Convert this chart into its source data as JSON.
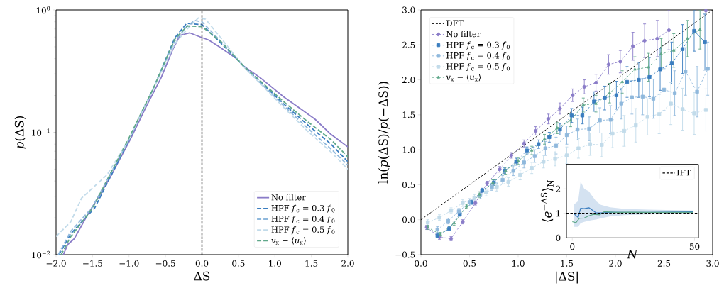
{
  "chart_data": [
    {
      "type": "line",
      "xlabel": "ΔS",
      "ylabel": "*p*(ΔS)",
      "log": "y",
      "legend": "bottom right",
      "xlim": [
        -2,
        2
      ],
      "ylim": [
        0.01,
        1
      ],
      "xticks": [
        {
          "value": -2,
          "label": "−2.0"
        },
        {
          "value": -1.5,
          "label": "−1.5"
        },
        {
          "value": -1,
          "label": "−1.0"
        },
        {
          "value": -0.5,
          "label": "−0.5"
        },
        {
          "value": 0,
          "label": "0.0"
        },
        {
          "value": 0.5,
          "label": "0.5"
        },
        {
          "value": 1,
          "label": "1.0"
        },
        {
          "value": 1.5,
          "label": "1.5"
        },
        {
          "value": 2,
          "label": "2.0"
        }
      ],
      "yticks": [
        {
          "value": 0.01,
          "label": "10$^{−2}$"
        },
        {
          "value": 0.1,
          "label": "10$^{−1}$"
        },
        {
          "value": 1,
          "label": "10$^{0}$"
        }
      ],
      "ref_lines": [
        {
          "axis": "x",
          "value": 0,
          "color": "#000000",
          "line_style": "dashed"
        }
      ],
      "series": [
        {
          "name": "No filter",
          "color": "#8a7cc8",
          "line_style": "solid",
          "x": [
            -1.9,
            -1.84,
            -1.75,
            -1.57,
            -1.37,
            -1.24,
            -0.98,
            -0.76,
            -0.56,
            -0.4,
            -0.3,
            -0.17,
            0.0,
            0.09,
            0.22,
            0.48,
            0.57,
            0.8,
            1.12,
            1.35,
            1.55,
            1.77,
            2.0
          ],
          "values": [
            0.01,
            0.0121,
            0.0135,
            0.0211,
            0.033,
            0.045,
            0.088,
            0.164,
            0.279,
            0.475,
            0.621,
            0.65,
            0.594,
            0.569,
            0.508,
            0.398,
            0.348,
            0.279,
            0.195,
            0.156,
            0.128,
            0.096,
            0.076
          ]
        },
        {
          "name": "HPF *f*$_{c}$ = 0.3 *f*$_{0}$",
          "color": "#3a7dbf",
          "line_style": "dashed",
          "x": [
            -1.96,
            -1.8,
            -1.47,
            -0.98,
            -0.66,
            -0.37,
            -0.21,
            0.0,
            0.25,
            0.57,
            1.12,
            1.45,
            1.77,
            2.0
          ],
          "values": [
            0.01,
            0.0148,
            0.0241,
            0.0917,
            0.233,
            0.594,
            0.776,
            0.759,
            0.543,
            0.348,
            0.171,
            0.115,
            0.08,
            0.0575
          ]
        },
        {
          "name": "HPF *f*$_{c}$ = 0.4 *f*$_{0}$",
          "color": "#8fb8dc",
          "line_style": "dashed",
          "x": [
            -1.97,
            -1.8,
            -1.5,
            -1.0,
            -0.66,
            -0.37,
            -0.2,
            -0.1,
            0.0,
            0.25,
            0.57,
            1.12,
            1.45,
            1.77,
            2.0
          ],
          "values": [
            0.01,
            0.0155,
            0.0245,
            0.088,
            0.233,
            0.56,
            0.74,
            0.82,
            0.8,
            0.56,
            0.345,
            0.165,
            0.108,
            0.073,
            0.054
          ]
        },
        {
          "name": "HPF *f*$_{c}$ = 0.5 *f*$_{0}$",
          "color": "#c2dbea",
          "line_style": "dashed",
          "x": [
            -2.0,
            -1.8,
            -1.65,
            -1.3,
            -1.0,
            -0.66,
            -0.37,
            -0.2,
            -0.05,
            0.05,
            0.25,
            0.57,
            1.12,
            1.45,
            1.77,
            2.0
          ],
          "values": [
            0.0141,
            0.0185,
            0.029,
            0.045,
            0.088,
            0.23,
            0.53,
            0.7,
            0.86,
            0.84,
            0.6,
            0.345,
            0.16,
            0.102,
            0.069,
            0.05
          ]
        },
        {
          "name": "*v*$_{x}$ − ⟨*u*$_{x}$⟩",
          "color": "#5fa88a",
          "line_style": "dashed",
          "x": [
            -1.93,
            -1.8,
            -1.5,
            -1.0,
            -0.66,
            -0.37,
            -0.2,
            0.0,
            0.25,
            0.57,
            1.12,
            1.45,
            1.77,
            2.0
          ],
          "values": [
            0.01,
            0.014,
            0.024,
            0.09,
            0.233,
            0.58,
            0.74,
            0.73,
            0.56,
            0.348,
            0.178,
            0.122,
            0.087,
            0.063
          ]
        }
      ]
    },
    {
      "type": "line",
      "xlabel": "|ΔS|",
      "ylabel": "ln(*p*(ΔS)/*p*(−ΔS))",
      "legend": "top left",
      "line_style": "dashed",
      "xlim": [
        0,
        3
      ],
      "ylim": [
        -0.5,
        3
      ],
      "xticks": [
        {
          "value": 0,
          "label": "0.0"
        },
        {
          "value": 0.5,
          "label": "0.5"
        },
        {
          "value": 1,
          "label": "1.0"
        },
        {
          "value": 1.5,
          "label": "1.5"
        },
        {
          "value": 2,
          "label": "2.0"
        },
        {
          "value": 2.5,
          "label": "2.5"
        },
        {
          "value": 3,
          "label": "3.0"
        }
      ],
      "yticks": [
        {
          "value": -0.5,
          "label": "−0.5"
        },
        {
          "value": 0,
          "label": "0.0"
        },
        {
          "value": 0.5,
          "label": "0.5"
        },
        {
          "value": 1,
          "label": "1.0"
        },
        {
          "value": 1.5,
          "label": "1.5"
        },
        {
          "value": 2,
          "label": "2.0"
        },
        {
          "value": 2.5,
          "label": "2.5"
        },
        {
          "value": 3,
          "label": "3.0"
        }
      ],
      "series": [
        {
          "name": "DFT",
          "color": "#000000",
          "marker": "none",
          "x": [
            0,
            3
          ],
          "values": [
            0,
            3
          ]
        },
        {
          "name": "No filter",
          "color": "#8a7cc8",
          "marker": "circle",
          "x": [
            0.06,
            0.19,
            0.31,
            0.43,
            0.56,
            0.68,
            0.81,
            0.93,
            1.06,
            1.18,
            1.31,
            1.43,
            1.56,
            1.68,
            1.8,
            1.93,
            2.05,
            2.18,
            2.3,
            2.43,
            2.55,
            2.68,
            2.8,
            2.93
          ],
          "values": [
            -0.11,
            -0.25,
            -0.27,
            -0.03,
            0.24,
            0.52,
            0.72,
            0.92,
            1.09,
            1.27,
            1.44,
            1.59,
            1.78,
            1.9,
            1.96,
            2.22,
            2.26,
            2.48,
            2.56,
            2.59,
            2.71,
            null,
            null,
            2.99
          ],
          "errors": [
            0.03,
            0.03,
            0.03,
            0.03,
            0.03,
            0.03,
            0.04,
            0.04,
            0.05,
            0.06,
            0.07,
            0.08,
            0.09,
            0.1,
            0.12,
            0.14,
            0.16,
            0.2,
            0.24,
            0.26,
            0.28,
            null,
            null,
            null
          ]
        },
        {
          "name": "HPF *f*$_{c}$ = 0.3 *f*$_{0}$",
          "color": "#3a7dbf",
          "marker": "square",
          "x": [
            0.17,
            0.29,
            0.4,
            0.52,
            0.63,
            0.75,
            0.86,
            0.98,
            1.09,
            1.21,
            1.32,
            1.43,
            1.55,
            1.66,
            1.78,
            1.89,
            2.01,
            2.12,
            2.24,
            2.35,
            2.46,
            2.58,
            2.69,
            2.81,
            2.92
          ],
          "values": [
            -0.23,
            -0.13,
            0.08,
            0.25,
            0.42,
            0.53,
            0.7,
            0.83,
            0.99,
            1.08,
            1.18,
            1.29,
            1.49,
            1.49,
            1.69,
            1.74,
            1.78,
            1.97,
            2.0,
            2.04,
            2.15,
            2.24,
            2.44,
            2.7,
            2.54
          ],
          "errors": [
            0.03,
            0.03,
            0.03,
            0.03,
            0.03,
            0.04,
            0.04,
            0.05,
            0.05,
            0.06,
            0.07,
            0.08,
            0.1,
            0.12,
            0.14,
            0.17,
            0.2,
            0.22,
            0.25,
            0.28,
            0.3,
            0.3,
            0.35,
            0.29,
            0.4
          ]
        },
        {
          "name": "HPF *f*$_{c}$ = 0.4 *f*$_{0}$",
          "color": "#8fb8dc",
          "marker": "square",
          "x": [
            0.17,
            0.28,
            0.39,
            0.5,
            0.61,
            0.73,
            0.84,
            0.95,
            1.06,
            1.17,
            1.28,
            1.39,
            1.5,
            1.61,
            1.73,
            1.84,
            1.95,
            2.06,
            2.17,
            2.28,
            2.39,
            2.5,
            2.61,
            2.72,
            2.84,
            2.95
          ],
          "values": [
            -0.14,
            -0.02,
            0.12,
            0.25,
            0.35,
            0.47,
            0.57,
            0.7,
            0.82,
            0.91,
            1.02,
            1.06,
            1.21,
            1.29,
            1.3,
            1.42,
            1.43,
            1.66,
            1.75,
            1.76,
            1.73,
            1.86,
            1.81,
            2.12,
            1.83,
            2.16
          ],
          "errors": [
            0.04,
            0.04,
            0.04,
            0.05,
            0.05,
            0.05,
            0.06,
            0.07,
            0.08,
            0.09,
            0.1,
            0.12,
            0.13,
            0.15,
            0.17,
            0.18,
            0.2,
            0.22,
            0.24,
            0.26,
            0.28,
            0.3,
            0.32,
            0.34,
            0.36,
            0.38
          ]
        },
        {
          "name": "HPF *f*$_{c}$ = 0.5 *f*$_{0}$",
          "color": "#c2dbea",
          "marker": "square",
          "x": [
            0.07,
            0.19,
            0.31,
            0.43,
            0.55,
            0.67,
            0.78,
            0.9,
            1.02,
            1.14,
            1.26,
            1.38,
            1.5,
            1.62,
            1.74,
            1.86,
            1.97,
            2.09,
            2.21,
            2.33,
            2.45,
            2.57,
            2.69,
            2.81,
            2.93
          ],
          "values": [
            -0.04,
            0.03,
            0.13,
            0.24,
            0.31,
            0.39,
            0.47,
            0.54,
            0.64,
            0.74,
            0.83,
            0.87,
            0.92,
            1.02,
            1.08,
            1.07,
            1.23,
            1.27,
            1.35,
            1.47,
            1.51,
            1.66,
            1.58,
            1.52,
            1.57
          ],
          "errors": [
            0.04,
            0.04,
            0.04,
            0.05,
            0.05,
            0.05,
            0.06,
            0.06,
            0.07,
            0.08,
            0.09,
            0.1,
            0.12,
            0.14,
            0.16,
            0.17,
            0.2,
            0.22,
            0.24,
            0.26,
            0.28,
            0.3,
            0.3,
            0.3,
            0.3
          ]
        },
        {
          "name": "*v*$_{x}$ − ⟨*u*$_{x}$⟩",
          "color": "#5fa88a",
          "marker": "triangle",
          "x": [
            0.07,
            0.2,
            0.34,
            0.47,
            0.6,
            0.74,
            0.87,
            1.0,
            1.14,
            1.27,
            1.4,
            1.54,
            1.67,
            1.8,
            1.94,
            2.07,
            2.2,
            2.34,
            2.47,
            2.6,
            2.74,
            2.87
          ],
          "values": [
            -0.11,
            -0.21,
            -0.05,
            0.19,
            0.36,
            0.53,
            0.7,
            0.84,
            0.99,
            1.15,
            1.31,
            1.42,
            1.64,
            1.66,
            1.81,
            1.97,
            2.15,
            2.18,
            2.37,
            2.42,
            2.59,
            2.72
          ],
          "errors": [
            0.03,
            0.03,
            0.03,
            0.03,
            0.04,
            0.04,
            0.05,
            0.05,
            0.06,
            0.07,
            0.08,
            0.09,
            0.1,
            0.12,
            0.14,
            0.16,
            0.18,
            0.2,
            0.22,
            0.24,
            0.26,
            0.28
          ]
        }
      ]
    },
    {
      "type": "line",
      "xlabel": "*N*",
      "ylabel": "⟨*e*$^{−ΔS}$⟩$_{N}$",
      "legend": "top right",
      "line_style": "solid",
      "xlim": [
        -2.4,
        51.6
      ],
      "ylim": [
        0,
        3
      ],
      "xticks": [
        0,
        50
      ],
      "yticks": [
        0,
        1,
        2
      ],
      "ref_lines": [
        {
          "axis": "y",
          "value": 1,
          "label": "IFT",
          "color": "#000000",
          "line_style": "dashed"
        }
      ],
      "series": [
        {
          "color": "#3a7dbf",
          "x": [
            0.5,
            2.4,
            3.4,
            4.9,
            6.8,
            7.8,
            9.7,
            11.7,
            15.5,
            21.4,
            31,
            49.5
          ],
          "values": [
            1.0,
            0.83,
            1.21,
            1.19,
            1.23,
            1.16,
            1.02,
            1.02,
            1.05,
            1.04,
            1.04,
            1.06
          ],
          "lower": [
            0.45,
            0.45,
            0.6,
            0.65,
            0.7,
            0.72,
            0.75,
            0.8,
            0.88,
            0.93,
            0.96,
            0.98
          ],
          "upper": [
            1.35,
            1.5,
            2.3,
            2.0,
            1.9,
            1.75,
            1.5,
            1.35,
            1.25,
            1.18,
            1.15,
            1.12
          ]
        },
        {
          "color": "#5fa88a",
          "x": [
            0.0,
            1.5,
            2.9,
            4.9,
            6.8,
            8.7,
            11.2,
            13.1,
            17.5,
            23.3,
            31,
            49.5
          ],
          "values": [
            0.66,
            0.62,
            0.8,
            0.81,
            0.9,
            0.96,
            0.94,
            1.07,
            1.04,
            1.05,
            1.04,
            1.04
          ]
        }
      ]
    }
  ]
}
